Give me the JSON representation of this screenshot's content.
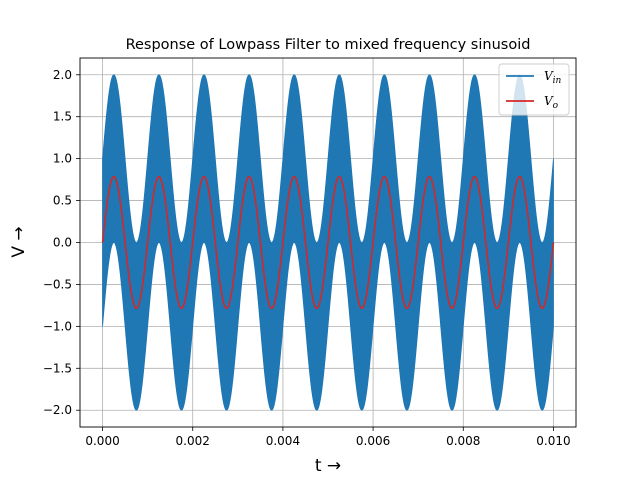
{
  "chart_data": {
    "type": "line",
    "title": "Response of Lowpass Filter to mixed frequency sinusoid",
    "xlabel": "t →",
    "ylabel": "V →",
    "xlim": [
      -0.0005,
      0.0105
    ],
    "ylim": [
      -2.2,
      2.2
    ],
    "xticks": [
      0.0,
      0.002,
      0.004,
      0.006,
      0.008,
      0.01
    ],
    "xtick_labels": [
      "0.000",
      "0.002",
      "0.004",
      "0.006",
      "0.008",
      "0.010"
    ],
    "yticks": [
      -2.0,
      -1.5,
      -1.0,
      -0.5,
      0.0,
      0.5,
      1.0,
      1.5,
      2.0
    ],
    "ytick_labels": [
      "−2.0",
      "−1.5",
      "−1.0",
      "−0.5",
      "0.0",
      "0.5",
      "1.0",
      "1.5",
      "2.0"
    ],
    "grid": true,
    "legend_position": "top-right",
    "series": [
      {
        "name": "V_in",
        "legend_main": "V",
        "legend_sub": "in",
        "color": "#1f77b4",
        "components": [
          {
            "amplitude": 1.0,
            "frequency_hz": 1000,
            "phase": "sin"
          },
          {
            "amplitude": 1.0,
            "frequency_hz": 50000,
            "phase": "cos"
          }
        ],
        "envelope_max": 2.0,
        "envelope_min": -2.0,
        "x_range": [
          0.0,
          0.01
        ]
      },
      {
        "name": "V_o",
        "legend_main": "V",
        "legend_sub": "o",
        "color": "#d62728",
        "amplitude": 0.785,
        "frequency_hz": 1000,
        "x_range": [
          0.0,
          0.01
        ],
        "points": [
          [
            0.0,
            0.0
          ],
          [
            0.00025,
            0.785
          ],
          [
            0.0005,
            0.0
          ],
          [
            0.00075,
            -0.785
          ],
          [
            0.00125,
            0.785
          ],
          [
            0.00175,
            -0.785
          ],
          [
            0.00225,
            0.785
          ],
          [
            0.00275,
            -0.785
          ],
          [
            0.00325,
            0.785
          ],
          [
            0.00375,
            -0.785
          ],
          [
            0.00425,
            0.785
          ],
          [
            0.00475,
            -0.785
          ],
          [
            0.00525,
            0.785
          ],
          [
            0.00575,
            -0.785
          ],
          [
            0.00625,
            0.785
          ],
          [
            0.00675,
            -0.785
          ],
          [
            0.00725,
            0.785
          ],
          [
            0.00775,
            -0.785
          ],
          [
            0.00825,
            0.785
          ],
          [
            0.00875,
            -0.785
          ],
          [
            0.00925,
            0.785
          ],
          [
            0.00975,
            -0.785
          ],
          [
            0.01,
            -0.1
          ]
        ]
      }
    ]
  }
}
